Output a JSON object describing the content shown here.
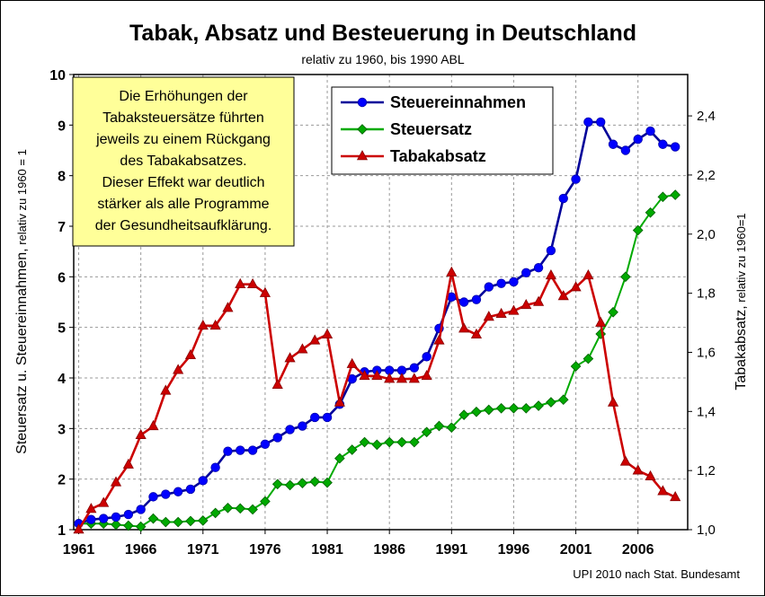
{
  "chart_data": {
    "type": "line",
    "title": "Tabak, Absatz und Besteuerung in Deutschland",
    "subtitle": "relativ zu 1960, bis 1990 ABL",
    "ylabel_left_main": "Steuersatz u. Steuereinnahmen,",
    "ylabel_left_sub": " relativ zu 1960 = 1",
    "ylabel_right_main": "Tabakabsatz,",
    "ylabel_right_sub": " relativ zu 1960=1",
    "source": "UPI 2010 nach Stat. Bundesamt",
    "annotation": [
      "Die Erhöhungen der",
      "Tabaksteuersätze führten",
      "jeweils zu einem Rückgang",
      "des Tabakabsatzes.",
      "Dieser Effekt war deutlich",
      "stärker als alle Programme",
      "der Gesundheitsaufklärung."
    ],
    "x_ticks": [
      "1961",
      "1966",
      "1971",
      "1976",
      "1981",
      "1986",
      "1991",
      "1996",
      "2001",
      "2006"
    ],
    "y_left_ticks": [
      "1",
      "2",
      "3",
      "4",
      "5",
      "6",
      "7",
      "8",
      "9",
      "10"
    ],
    "y_right_ticks": [
      "1,0",
      "1,2",
      "1,4",
      "1,6",
      "1,8",
      "2,0",
      "2,2",
      "2,4"
    ],
    "ylim_left": [
      1,
      10
    ],
    "ylim_right": [
      1.0,
      2.54
    ],
    "grid": true,
    "legend_position": "top-center",
    "x": [
      1961,
      1962,
      1963,
      1964,
      1965,
      1966,
      1967,
      1968,
      1969,
      1970,
      1971,
      1972,
      1973,
      1974,
      1975,
      1976,
      1977,
      1978,
      1979,
      1980,
      1981,
      1982,
      1983,
      1984,
      1985,
      1986,
      1987,
      1988,
      1989,
      1990,
      1991,
      1992,
      1993,
      1994,
      1995,
      1996,
      1997,
      1998,
      1999,
      2000,
      2001,
      2002,
      2003,
      2004,
      2005,
      2006,
      2007,
      2008,
      2009
    ],
    "series": [
      {
        "name": "Steuereinnahmen",
        "axis": "left",
        "color": "#0000ff",
        "marker": "circle",
        "values": [
          1.12,
          1.2,
          1.22,
          1.25,
          1.3,
          1.4,
          1.65,
          1.7,
          1.75,
          1.8,
          1.97,
          2.23,
          2.55,
          2.57,
          2.57,
          2.69,
          2.82,
          2.98,
          3.05,
          3.22,
          3.22,
          3.48,
          3.98,
          4.12,
          4.15,
          4.15,
          4.15,
          4.2,
          4.42,
          4.98,
          5.6,
          5.5,
          5.55,
          5.8,
          5.87,
          5.9,
          6.08,
          6.18,
          6.52,
          7.55,
          7.93,
          9.06,
          9.06,
          8.62,
          8.5,
          8.72,
          8.88,
          8.62,
          8.57
        ]
      },
      {
        "name": "Steuersatz",
        "axis": "left",
        "color": "#00aa00",
        "marker": "diamond",
        "values": [
          1.12,
          1.12,
          1.12,
          1.1,
          1.08,
          1.06,
          1.22,
          1.15,
          1.15,
          1.17,
          1.18,
          1.33,
          1.43,
          1.42,
          1.4,
          1.56,
          1.9,
          1.88,
          1.92,
          1.95,
          1.93,
          2.41,
          2.58,
          2.73,
          2.68,
          2.73,
          2.73,
          2.73,
          2.93,
          3.05,
          3.02,
          3.27,
          3.33,
          3.37,
          3.4,
          3.4,
          3.4,
          3.45,
          3.52,
          3.57,
          4.23,
          4.38,
          4.87,
          5.3,
          6.0,
          6.92,
          7.27,
          7.58,
          7.62
        ]
      },
      {
        "name": "Tabakabsatz",
        "axis": "right",
        "color": "#cc0000",
        "marker": "triangle",
        "values": [
          1.0,
          1.07,
          1.09,
          1.16,
          1.22,
          1.32,
          1.35,
          1.47,
          1.54,
          1.59,
          1.69,
          1.69,
          1.75,
          1.83,
          1.83,
          1.8,
          1.49,
          1.58,
          1.61,
          1.64,
          1.66,
          1.43,
          1.56,
          1.52,
          1.52,
          1.51,
          1.51,
          1.51,
          1.52,
          1.64,
          1.87,
          1.68,
          1.66,
          1.72,
          1.73,
          1.74,
          1.76,
          1.77,
          1.86,
          1.79,
          1.82,
          1.86,
          1.7,
          1.43,
          1.23,
          1.2,
          1.18,
          1.13,
          1.11
        ]
      }
    ]
  }
}
